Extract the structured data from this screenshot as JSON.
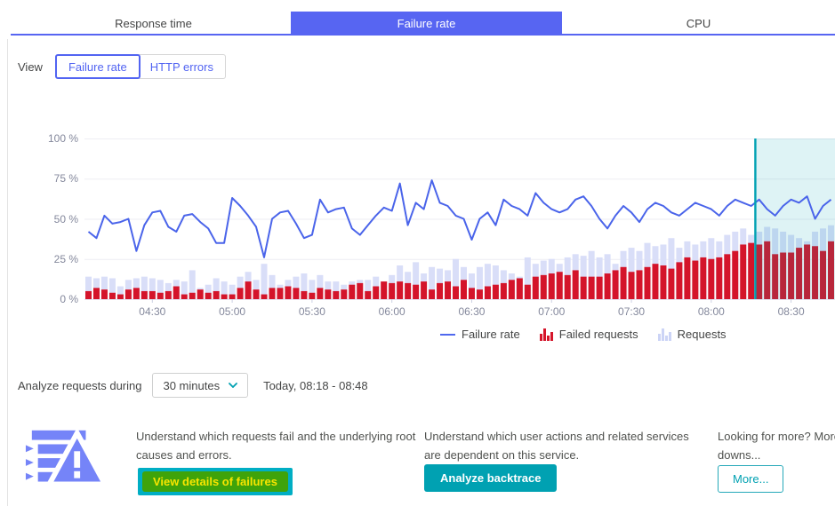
{
  "tabs": {
    "response_time": "Response time",
    "failure_rate": "Failure rate",
    "cpu": "CPU"
  },
  "view": {
    "label": "View",
    "option_failure_rate": "Failure rate",
    "option_http_errors": "HTTP errors"
  },
  "chart_data": {
    "type": "bar",
    "subtype": "bars-plus-line",
    "x_start": "04:06",
    "x_end": "08:45",
    "interval_minutes": 3,
    "x_ticks": [
      "04:30",
      "05:00",
      "05:30",
      "06:00",
      "06:30",
      "07:00",
      "07:30",
      "08:00",
      "08:30"
    ],
    "x_tick_indices": [
      8,
      18,
      28,
      38,
      48,
      58,
      68,
      78,
      88
    ],
    "ylim": [
      0,
      100
    ],
    "y_ticks": [
      "0 %",
      "25 %",
      "50 %",
      "75 %",
      "100 %"
    ],
    "grid": true,
    "legend_position": "bottom",
    "selection": {
      "start_index": 84,
      "from": "08:18",
      "to": "08:48",
      "line_color": "#00a1b2",
      "fill_color": "rgba(0,161,178,0.13)"
    },
    "series": [
      {
        "name": "Requests",
        "type": "bar",
        "color": "#d9def8",
        "values": [
          14,
          13,
          14,
          13,
          8,
          12,
          13,
          14,
          13,
          12,
          10,
          12,
          11,
          18,
          7,
          9,
          13,
          11,
          9,
          14,
          17,
          12,
          22,
          15,
          9,
          12,
          14,
          16,
          12,
          15,
          11,
          11,
          9,
          11,
          12,
          12,
          14,
          11,
          15,
          21,
          17,
          23,
          16,
          20,
          19,
          18,
          25,
          20,
          16,
          20,
          22,
          21,
          18,
          16,
          14,
          26,
          22,
          24,
          25,
          22,
          26,
          28,
          27,
          30,
          26,
          28,
          22,
          30,
          32,
          30,
          35,
          33,
          34,
          38,
          32,
          36,
          34,
          36,
          38,
          36,
          40,
          42,
          44,
          40,
          42,
          45,
          44,
          42,
          40,
          38,
          36,
          42,
          44,
          46
        ]
      },
      {
        "name": "Failed requests",
        "type": "bar",
        "color": "#d4142a",
        "values": [
          5,
          7,
          6,
          4,
          3,
          6,
          7,
          5,
          5,
          4,
          5,
          8,
          3,
          4,
          6,
          4,
          5,
          3,
          3,
          7,
          11,
          6,
          3,
          7,
          7,
          8,
          7,
          5,
          4,
          7,
          6,
          5,
          6,
          9,
          10,
          5,
          8,
          11,
          10,
          11,
          10,
          9,
          11,
          6,
          10,
          11,
          8,
          12,
          7,
          6,
          8,
          9,
          10,
          12,
          13,
          9,
          14,
          15,
          16,
          17,
          15,
          18,
          14,
          14,
          14,
          16,
          18,
          20,
          17,
          18,
          20,
          22,
          21,
          19,
          23,
          26,
          24,
          26,
          25,
          26,
          28,
          30,
          34,
          35,
          34,
          36,
          28,
          29,
          29,
          32,
          34,
          33,
          30,
          36
        ]
      },
      {
        "name": "Failure rate",
        "type": "line",
        "color": "#4a64ea",
        "values": [
          42,
          38,
          52,
          47,
          48,
          50,
          30,
          46,
          54,
          55,
          45,
          42,
          52,
          53,
          48,
          44,
          35,
          35,
          63,
          58,
          52,
          45,
          26,
          50,
          54,
          55,
          47,
          38,
          40,
          62,
          54,
          56,
          57,
          44,
          40,
          46,
          52,
          57,
          55,
          72,
          46,
          60,
          56,
          74,
          60,
          58,
          52,
          50,
          37,
          50,
          54,
          46,
          62,
          58,
          56,
          52,
          66,
          60,
          56,
          54,
          56,
          62,
          64,
          58,
          50,
          44,
          52,
          58,
          54,
          48,
          56,
          60,
          58,
          54,
          52,
          56,
          60,
          58,
          56,
          52,
          58,
          62,
          60,
          58,
          62,
          56,
          52,
          58,
          62,
          60,
          64,
          50,
          58,
          62
        ]
      }
    ],
    "legend": [
      {
        "name": "Failure rate",
        "swatch": "line",
        "color": "#4f68ee"
      },
      {
        "name": "Failed requests",
        "swatch": "bars",
        "color": "#d5162b"
      },
      {
        "name": "Requests",
        "swatch": "bars",
        "color": "#ccd4f6"
      }
    ]
  },
  "analyze": {
    "label": "Analyze requests during",
    "duration_value": "30 minutes",
    "range_text": "Today, 08:18 - 08:48"
  },
  "cards": {
    "failures": {
      "text": "Understand which requests fail and the underlying root causes and errors.",
      "button": "View details of failures"
    },
    "backtrace": {
      "text": "Understand which user actions and related services are dependent on this service.",
      "button": "Analyze backtrace"
    },
    "more": {
      "text": "Looking for more? More downs...",
      "button": "More..."
    }
  },
  "colors": {
    "accent_blue": "#5765f2",
    "teal": "#00a1b2",
    "bar_red": "#d4142a",
    "bar_lavender": "#d9def8",
    "line_blue": "#4a64ea",
    "icon_periwinkle": "#7584f8"
  }
}
